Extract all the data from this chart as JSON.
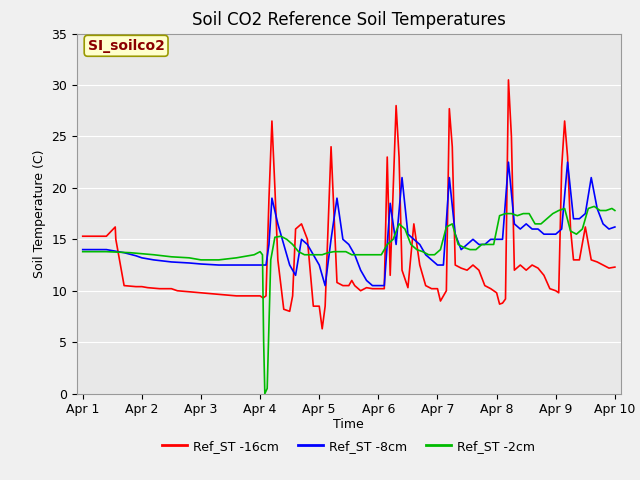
{
  "title": "Soil CO2 Reference Soil Temperatures",
  "xlabel": "Time",
  "ylabel": "Soil Temperature (C)",
  "ylim": [
    0,
    35
  ],
  "yticks": [
    0,
    5,
    10,
    15,
    20,
    25,
    30,
    35
  ],
  "xtick_labels": [
    "Apr 1",
    "Apr 2",
    "Apr 3",
    "Apr 4",
    "Apr 5",
    "Apr 6",
    "Apr 7",
    "Apr 8",
    "Apr 9",
    "Apr 10"
  ],
  "annotation_text": "SI_soilco2",
  "legend_labels": [
    "Ref_ST -16cm",
    "Ref_ST -8cm",
    "Ref_ST -2cm"
  ],
  "line_colors": [
    "#ff0000",
    "#0000ff",
    "#00bb00"
  ],
  "fig_facecolor": "#f0f0f0",
  "plot_facecolor": "#e8e8e8",
  "grid_color": "#ffffff",
  "line_width": 1.2,
  "title_fontsize": 12,
  "axis_fontsize": 9,
  "label_fontsize": 9,
  "red_x": [
    0.0,
    0.4,
    0.55,
    0.56,
    0.7,
    0.9,
    1.0,
    1.1,
    1.3,
    1.5,
    1.6,
    1.8,
    2.0,
    2.2,
    2.4,
    2.6,
    2.8,
    3.0,
    3.05,
    3.1,
    3.15,
    3.2,
    3.25,
    3.3,
    3.4,
    3.5,
    3.55,
    3.6,
    3.7,
    3.8,
    3.9,
    4.0,
    4.05,
    4.1,
    4.2,
    4.3,
    4.4,
    4.5,
    4.55,
    4.6,
    4.7,
    4.8,
    4.9,
    5.0,
    5.1,
    5.15,
    5.2,
    5.3,
    5.35,
    5.4,
    5.5,
    5.6,
    5.7,
    5.8,
    5.9,
    6.0,
    6.05,
    6.1,
    6.15,
    6.2,
    6.25,
    6.3,
    6.4,
    6.5,
    6.6,
    6.7,
    6.8,
    6.9,
    7.0,
    7.05,
    7.1,
    7.15,
    7.2,
    7.25,
    7.3,
    7.4,
    7.5,
    7.6,
    7.7,
    7.8,
    7.9,
    8.0,
    8.05,
    8.1,
    8.15,
    8.2,
    8.25,
    8.3,
    8.4,
    8.5,
    8.6,
    8.7,
    8.8,
    8.9,
    9.0
  ],
  "red_y": [
    15.3,
    15.3,
    16.2,
    15.0,
    10.5,
    10.4,
    10.4,
    10.3,
    10.2,
    10.2,
    10.0,
    9.9,
    9.8,
    9.7,
    9.6,
    9.5,
    9.5,
    9.5,
    9.3,
    9.5,
    19.0,
    26.5,
    20.0,
    13.0,
    8.2,
    8.0,
    9.5,
    16.0,
    16.5,
    15.0,
    8.5,
    8.5,
    6.3,
    8.5,
    24.0,
    10.8,
    10.5,
    10.5,
    11.0,
    10.5,
    10.0,
    10.3,
    10.2,
    10.2,
    10.2,
    23.0,
    11.5,
    28.0,
    23.0,
    12.0,
    10.3,
    16.5,
    12.5,
    10.5,
    10.2,
    10.2,
    9.0,
    9.5,
    10.0,
    27.7,
    24.0,
    12.5,
    12.2,
    12.0,
    12.5,
    12.0,
    10.5,
    10.2,
    9.8,
    8.7,
    8.8,
    9.2,
    30.5,
    25.0,
    12.0,
    12.5,
    12.0,
    12.5,
    12.2,
    11.5,
    10.2,
    10.0,
    9.8,
    22.0,
    26.5,
    23.0,
    16.0,
    13.0,
    13.0,
    16.2,
    13.0,
    12.8,
    12.5,
    12.2,
    12.3
  ],
  "blue_x": [
    0.0,
    0.4,
    0.7,
    0.9,
    1.0,
    1.2,
    1.5,
    1.8,
    2.0,
    2.3,
    2.6,
    2.9,
    3.0,
    3.1,
    3.15,
    3.2,
    3.3,
    3.4,
    3.5,
    3.6,
    3.7,
    3.8,
    3.9,
    4.0,
    4.1,
    4.2,
    4.3,
    4.4,
    4.5,
    4.6,
    4.7,
    4.8,
    4.9,
    5.0,
    5.1,
    5.2,
    5.3,
    5.4,
    5.5,
    5.6,
    5.7,
    5.8,
    5.9,
    6.0,
    6.1,
    6.2,
    6.3,
    6.4,
    6.5,
    6.6,
    6.7,
    6.8,
    6.9,
    7.0,
    7.1,
    7.2,
    7.3,
    7.4,
    7.5,
    7.6,
    7.7,
    7.8,
    7.9,
    8.0,
    8.1,
    8.2,
    8.3,
    8.4,
    8.5,
    8.6,
    8.7,
    8.8,
    8.9,
    9.0
  ],
  "blue_y": [
    14.0,
    14.0,
    13.7,
    13.4,
    13.2,
    13.0,
    12.8,
    12.7,
    12.6,
    12.5,
    12.5,
    12.5,
    12.5,
    12.5,
    14.5,
    19.0,
    16.5,
    14.5,
    12.5,
    11.5,
    15.0,
    14.5,
    13.5,
    12.5,
    10.5,
    15.0,
    19.0,
    15.0,
    14.5,
    13.5,
    12.0,
    11.0,
    10.5,
    10.5,
    10.5,
    18.5,
    14.5,
    21.0,
    15.5,
    15.0,
    14.5,
    13.5,
    13.0,
    12.5,
    12.5,
    21.0,
    15.5,
    14.0,
    14.5,
    15.0,
    14.5,
    14.5,
    15.0,
    15.0,
    15.0,
    22.5,
    16.5,
    16.0,
    16.5,
    16.0,
    16.0,
    15.5,
    15.5,
    15.5,
    16.0,
    22.5,
    17.0,
    17.0,
    17.5,
    21.0,
    18.0,
    16.5,
    16.0,
    16.2
  ],
  "green_x": [
    0.0,
    0.4,
    0.8,
    1.0,
    1.2,
    1.5,
    1.8,
    2.0,
    2.3,
    2.6,
    2.9,
    3.0,
    3.04,
    3.06,
    3.08,
    3.12,
    3.18,
    3.25,
    3.35,
    3.45,
    3.55,
    3.65,
    3.75,
    3.85,
    3.95,
    4.05,
    4.15,
    4.25,
    4.35,
    4.45,
    4.55,
    4.65,
    4.75,
    4.85,
    4.95,
    5.05,
    5.15,
    5.25,
    5.35,
    5.45,
    5.55,
    5.65,
    5.75,
    5.85,
    5.95,
    6.05,
    6.15,
    6.25,
    6.35,
    6.45,
    6.55,
    6.65,
    6.75,
    6.85,
    6.95,
    7.05,
    7.15,
    7.25,
    7.35,
    7.45,
    7.55,
    7.65,
    7.75,
    7.85,
    7.95,
    8.05,
    8.15,
    8.25,
    8.35,
    8.45,
    8.55,
    8.65,
    8.75,
    8.85,
    8.95,
    9.0
  ],
  "green_y": [
    13.8,
    13.8,
    13.7,
    13.6,
    13.5,
    13.3,
    13.2,
    13.0,
    13.0,
    13.2,
    13.5,
    13.8,
    13.5,
    5.0,
    0.0,
    0.5,
    13.0,
    15.2,
    15.3,
    15.0,
    14.5,
    13.8,
    13.5,
    13.5,
    13.5,
    13.5,
    13.7,
    13.8,
    13.8,
    13.8,
    13.5,
    13.5,
    13.5,
    13.5,
    13.5,
    13.5,
    14.5,
    15.0,
    16.5,
    16.0,
    14.5,
    14.0,
    13.8,
    13.5,
    13.5,
    14.0,
    16.2,
    16.5,
    14.5,
    14.2,
    14.0,
    14.0,
    14.5,
    14.5,
    14.5,
    17.3,
    17.5,
    17.5,
    17.3,
    17.5,
    17.5,
    16.5,
    16.5,
    17.0,
    17.5,
    17.8,
    18.0,
    15.8,
    15.5,
    16.0,
    18.0,
    18.2,
    17.8,
    17.8,
    18.0,
    17.8
  ]
}
